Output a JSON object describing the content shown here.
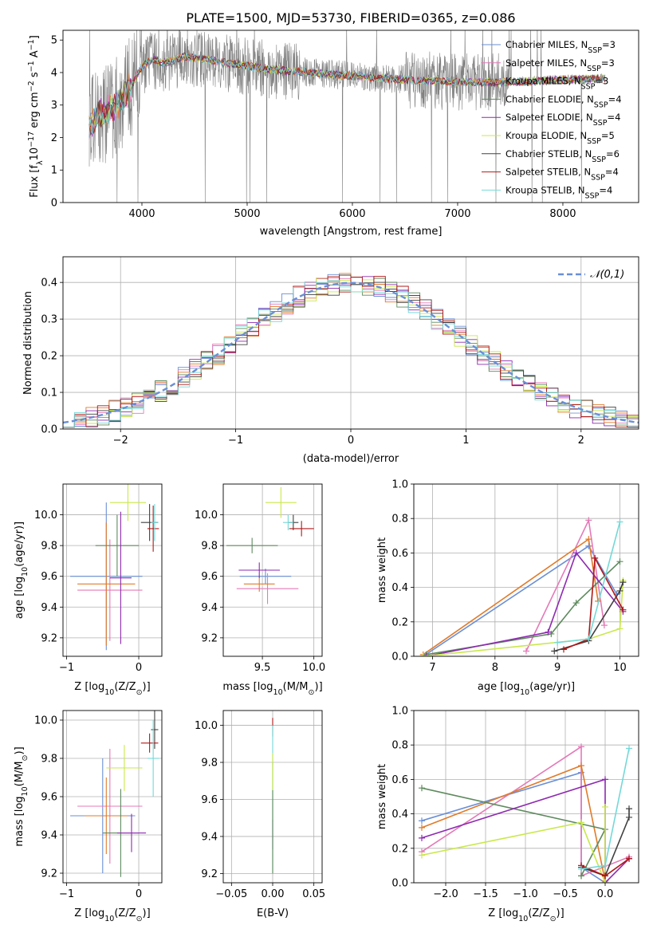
{
  "figure": {
    "title": "PLATE=1500, MJD=53730, FIBERID=0365, z=0.086"
  },
  "colors": {
    "chabrier_miles": "#6a8fd6",
    "salpeter_miles": "#e47ab8",
    "kroupa_miles": "#e07b2a",
    "chabrier_elodie": "#5e8a5e",
    "salpeter_elodie": "#8e2ab0",
    "kroupa_elodie": "#c8e84a",
    "chabrier_stelib": "#404040",
    "salpeter_stelib": "#b01818",
    "kroupa_stelib": "#74d8d8",
    "data": "#808080",
    "grid": "#b0b0b0"
  },
  "chart_data": [
    {
      "id": "spectrum",
      "type": "line",
      "xlabel": "wavelength [Angstrom, rest frame]",
      "ylabel_prefix": "Flux [f",
      "ylabel_mid": "10",
      "ylabel_unit1": " erg cm",
      "ylabel_unit2": " s",
      "ylabel_unit3": " A",
      "ylabel_close": "]",
      "xlim": [
        3250,
        8720
      ],
      "ylim": [
        0,
        5.3
      ],
      "xticks": [
        4000,
        5000,
        6000,
        7000,
        8000
      ],
      "yticks": [
        0,
        1,
        2,
        3,
        4,
        5
      ],
      "legend_loc": "upper right",
      "series": [
        {
          "name": "Chabrier MILES, N",
          "sub": "SSP",
          "suffix": "=3",
          "color": "#6a8fd6"
        },
        {
          "name": "Salpeter MILES, N",
          "sub": "SSP",
          "suffix": "=3",
          "color": "#e47ab8"
        },
        {
          "name": "Kroupa MILES, N",
          "sub": "SSP",
          "suffix": "=3",
          "color": "#e07b2a"
        },
        {
          "name": "Chabrier ELODIE, N",
          "sub": "SSP",
          "suffix": "=4",
          "color": "#5e8a5e"
        },
        {
          "name": "Salpeter ELODIE, N",
          "sub": "SSP",
          "suffix": "=4",
          "color": "#8e2ab0"
        },
        {
          "name": "Kroupa ELODIE, N",
          "sub": "SSP",
          "suffix": "=5",
          "color": "#c8e84a"
        },
        {
          "name": "Chabrier STELIB, N",
          "sub": "SSP",
          "suffix": "=6",
          "color": "#404040"
        },
        {
          "name": "Salpeter STELIB, N",
          "sub": "SSP",
          "suffix": "=4",
          "color": "#b01818"
        },
        {
          "name": "Kroupa STELIB, N",
          "sub": "SSP",
          "suffix": "=4",
          "color": "#74d8d8"
        }
      ],
      "continuum": {
        "x": [
          3500,
          3600,
          3700,
          3800,
          3900,
          4000,
          4100,
          4200,
          4300,
          4400,
          4600,
          4800,
          5000,
          5200,
          5400,
          5600,
          5800,
          6000,
          6200,
          6400,
          6600,
          6800,
          7000,
          7200,
          7400,
          7600,
          7800,
          8000,
          8200,
          8400
        ],
        "y": [
          2.4,
          2.7,
          2.9,
          3.1,
          3.6,
          4.2,
          4.4,
          4.3,
          4.35,
          4.5,
          4.4,
          4.3,
          4.2,
          4.1,
          4.05,
          4.0,
          3.95,
          3.9,
          3.85,
          3.8,
          3.75,
          3.75,
          3.7,
          3.7,
          3.7,
          3.72,
          3.75,
          3.78,
          3.8,
          3.82
        ]
      }
    },
    {
      "id": "residuals",
      "type": "bar",
      "xlabel": "(data-model)/error",
      "ylabel": "Normed distribution",
      "xlim": [
        -2.5,
        2.5
      ],
      "ylim": [
        0,
        0.47
      ],
      "xticks": [
        -2,
        -1,
        0,
        1,
        2
      ],
      "yticks": [
        0.0,
        0.1,
        0.2,
        0.3,
        0.4
      ],
      "legend": "𝒩(0,1)",
      "legend_loc": "upper right",
      "bin_width": 0.1
    },
    {
      "id": "age_vs_Z",
      "type": "scatter",
      "xlabel_pre": "Z [log",
      "xlabel_sub": "10",
      "xlabel_post": "(Z/Z",
      "xlabel_sun": "⊙",
      "xlabel_end": ")]",
      "ylabel_pre": "age  [log",
      "ylabel_sub": "10",
      "ylabel_post": "(age/yr)]",
      "xlim": [
        -1.05,
        0.32
      ],
      "ylim": [
        9.08,
        10.2
      ],
      "xticks": [
        -1,
        0
      ],
      "yticks": [
        9.2,
        9.4,
        9.6,
        9.8,
        10.0
      ],
      "points": [
        {
          "x": -0.45,
          "y": 9.6,
          "xerr": 0.5,
          "yerr": 0.48,
          "color": "#6a8fd6"
        },
        {
          "x": -0.4,
          "y": 9.51,
          "xerr": 0.45,
          "yerr": 0.33,
          "color": "#e47ab8"
        },
        {
          "x": -0.45,
          "y": 9.55,
          "xerr": 0.4,
          "yerr": 0.4,
          "color": "#e07b2a"
        },
        {
          "x": -0.3,
          "y": 9.8,
          "xerr": 0.3,
          "yerr": 0.2,
          "color": "#5e8a5e"
        },
        {
          "x": -0.25,
          "y": 9.59,
          "xerr": 0.15,
          "yerr": 0.43,
          "color": "#8e2ab0"
        },
        {
          "x": -0.15,
          "y": 10.08,
          "xerr": 0.25,
          "yerr": 0.12,
          "color": "#c8e84a"
        },
        {
          "x": 0.15,
          "y": 9.95,
          "xerr": 0.12,
          "yerr": 0.12,
          "color": "#404040"
        },
        {
          "x": 0.2,
          "y": 9.91,
          "xerr": 0.08,
          "yerr": 0.15,
          "color": "#b01818"
        },
        {
          "x": 0.22,
          "y": 9.95,
          "xerr": 0.05,
          "yerr": 0.12,
          "color": "#74d8d8"
        }
      ]
    },
    {
      "id": "age_vs_mass",
      "type": "scatter",
      "xlabel_pre": "mass [log",
      "xlabel_sub": "10",
      "xlabel_post": "(M/M",
      "xlabel_sun": "⊙",
      "xlabel_end": ")]",
      "xlim": [
        9.12,
        10.08
      ],
      "ylim": [
        9.08,
        10.2
      ],
      "xticks": [
        9.5,
        10.0
      ],
      "yticks": [
        9.2,
        9.4,
        9.6,
        9.8,
        10.0
      ],
      "points": [
        {
          "x": 9.53,
          "y": 9.6,
          "xerr": 0.25,
          "yerr": 0.05,
          "color": "#6a8fd6"
        },
        {
          "x": 9.55,
          "y": 9.52,
          "xerr": 0.3,
          "yerr": 0.1,
          "color": "#e47ab8"
        },
        {
          "x": 9.47,
          "y": 9.55,
          "xerr": 0.15,
          "yerr": 0.05,
          "color": "#e07b2a"
        },
        {
          "x": 9.4,
          "y": 9.8,
          "xerr": 0.25,
          "yerr": 0.05,
          "color": "#5e8a5e"
        },
        {
          "x": 9.47,
          "y": 9.64,
          "xerr": 0.2,
          "yerr": 0.05,
          "color": "#8e2ab0"
        },
        {
          "x": 9.68,
          "y": 10.08,
          "xerr": 0.15,
          "yerr": 0.1,
          "color": "#c8e84a"
        },
        {
          "x": 9.8,
          "y": 9.95,
          "xerr": 0.05,
          "yerr": 0.05,
          "color": "#404040"
        },
        {
          "x": 9.88,
          "y": 9.91,
          "xerr": 0.12,
          "yerr": 0.05,
          "color": "#b01818"
        },
        {
          "x": 9.75,
          "y": 9.95,
          "xerr": 0.05,
          "yerr": 0.05,
          "color": "#74d8d8"
        }
      ]
    },
    {
      "id": "weight_vs_age",
      "type": "line",
      "xlabel_pre": "age  [log",
      "xlabel_sub": "10",
      "xlabel_post": "(age/yr)]",
      "ylabel": "mass weight",
      "xlim": [
        6.7,
        10.3
      ],
      "ylim": [
        0,
        1.0
      ],
      "xticks": [
        7,
        8,
        9,
        10
      ],
      "yticks": [
        0.0,
        0.2,
        0.4,
        0.6,
        0.8,
        1.0
      ],
      "series": [
        {
          "color": "#6a8fd6",
          "x": [
            6.85,
            9.5,
            9.95
          ],
          "y": [
            0.0,
            0.64,
            0.36
          ]
        },
        {
          "color": "#e47ab8",
          "x": [
            8.5,
            9.5,
            9.75
          ],
          "y": [
            0.03,
            0.79,
            0.18
          ]
        },
        {
          "color": "#e07b2a",
          "x": [
            6.85,
            9.5,
            9.65
          ],
          "y": [
            0.01,
            0.68,
            0.32
          ]
        },
        {
          "color": "#5e8a5e",
          "x": [
            6.9,
            8.9,
            9.3,
            10.0
          ],
          "y": [
            0.01,
            0.13,
            0.31,
            0.55
          ]
        },
        {
          "color": "#8e2ab0",
          "x": [
            6.9,
            8.85,
            9.3,
            10.05
          ],
          "y": [
            0.0,
            0.14,
            0.6,
            0.26
          ]
        },
        {
          "color": "#c8e84a",
          "x": [
            6.85,
            9.5,
            10.0,
            10.05
          ],
          "y": [
            0.0,
            0.1,
            0.16,
            0.44
          ]
        },
        {
          "color": "#404040",
          "x": [
            8.95,
            9.5,
            10.0,
            10.05
          ],
          "y": [
            0.03,
            0.09,
            0.38,
            0.43
          ]
        },
        {
          "color": "#b01818",
          "x": [
            9.1,
            9.5,
            9.6,
            10.05
          ],
          "y": [
            0.04,
            0.1,
            0.57,
            0.27
          ]
        },
        {
          "color": "#74d8d8",
          "x": [
            9.0,
            9.5,
            10.0
          ],
          "y": [
            0.08,
            0.1,
            0.78
          ]
        }
      ]
    },
    {
      "id": "mass_vs_Z",
      "type": "scatter",
      "xlabel_pre": "Z [log",
      "xlabel_sub": "10",
      "xlabel_post": "(Z/Z",
      "xlabel_sun": "⊙",
      "xlabel_end": ")]",
      "ylabel_pre": "mass [log",
      "ylabel_sub": "10",
      "ylabel_post": "(M/M",
      "ylabel_sun": "⊙",
      "ylabel_end": ")]",
      "xlim": [
        -1.05,
        0.32
      ],
      "ylim": [
        9.15,
        10.05
      ],
      "xticks": [
        -1,
        0
      ],
      "yticks": [
        9.2,
        9.4,
        9.6,
        9.8,
        10.0
      ],
      "points": [
        {
          "x": -0.5,
          "y": 9.5,
          "xerr": 0.45,
          "yerr": 0.3,
          "color": "#6a8fd6"
        },
        {
          "x": -0.4,
          "y": 9.55,
          "xerr": 0.45,
          "yerr": 0.3,
          "color": "#e47ab8"
        },
        {
          "x": -0.45,
          "y": 9.5,
          "xerr": 0.3,
          "yerr": 0.2,
          "color": "#e07b2a"
        },
        {
          "x": -0.25,
          "y": 9.41,
          "xerr": 0.25,
          "yerr": 0.23,
          "color": "#5e8a5e"
        },
        {
          "x": -0.1,
          "y": 9.41,
          "xerr": 0.2,
          "yerr": 0.1,
          "color": "#8e2ab0"
        },
        {
          "x": -0.2,
          "y": 9.75,
          "xerr": 0.25,
          "yerr": 0.12,
          "color": "#c8e84a"
        },
        {
          "x": 0.22,
          "y": 9.95,
          "xerr": 0.05,
          "yerr": 0.1,
          "color": "#404040"
        },
        {
          "x": 0.15,
          "y": 9.88,
          "xerr": 0.12,
          "yerr": 0.05,
          "color": "#b01818"
        },
        {
          "x": 0.2,
          "y": 9.8,
          "xerr": 0.08,
          "yerr": 0.2,
          "color": "#74d8d8"
        }
      ]
    },
    {
      "id": "mass_vs_EBV",
      "type": "scatter",
      "xlabel": "E(B-V)",
      "xlim": [
        -0.06,
        0.06
      ],
      "ylim": [
        9.15,
        10.08
      ],
      "xticks": [
        -0.05,
        0.0,
        0.05
      ],
      "xtick_labels": [
        "−0.05",
        "0.00",
        "0.05"
      ],
      "yticks": [
        9.2,
        9.4,
        9.6,
        9.8,
        10.0
      ],
      "points": [
        {
          "x": 0.0,
          "y": 9.99,
          "yerr": 0.05,
          "color": "#b01818"
        },
        {
          "x": 0.0,
          "y": 9.41,
          "yerr": 0.08,
          "color": "#8e2ab0"
        },
        {
          "x": 0.0,
          "y": 9.6,
          "yerr": 0.4,
          "color": "#74d8d8"
        },
        {
          "x": 0.0,
          "y": 9.5,
          "yerr": 0.3,
          "color": "#5e8a5e"
        },
        {
          "x": 0.0,
          "y": 9.75,
          "yerr": 0.1,
          "color": "#c8e84a"
        }
      ]
    },
    {
      "id": "weight_vs_Z",
      "type": "line",
      "xlabel_pre": "Z [log",
      "xlabel_sub": "10",
      "xlabel_post": "(Z/Z",
      "xlabel_sun": "⊙",
      "xlabel_end": ")]",
      "ylabel": "mass weight",
      "xlim": [
        -2.4,
        0.42
      ],
      "ylim": [
        0,
        1.0
      ],
      "xticks": [
        -2.0,
        -1.5,
        -1.0,
        -0.5,
        0.0
      ],
      "xtick_labels": [
        "−2.0",
        "−1.5",
        "−1.0",
        "−0.5",
        "0.0"
      ],
      "yticks": [
        0.0,
        0.2,
        0.4,
        0.6,
        0.8,
        1.0
      ],
      "series": [
        {
          "color": "#6a8fd6",
          "x": [
            -2.3,
            -0.3,
            -0.3,
            0.0
          ],
          "y": [
            0.36,
            0.64,
            0.09,
            0.0
          ]
        },
        {
          "color": "#e47ab8",
          "x": [
            -2.3,
            -0.3,
            -0.3,
            0.3
          ],
          "y": [
            0.18,
            0.79,
            0.04,
            0.15
          ]
        },
        {
          "color": "#e07b2a",
          "x": [
            -2.3,
            -0.3,
            0.0
          ],
          "y": [
            0.32,
            0.68,
            0.01
          ]
        },
        {
          "color": "#5e8a5e",
          "x": [
            -2.3,
            0.0,
            -0.3
          ],
          "y": [
            0.55,
            0.31,
            0.04
          ]
        },
        {
          "color": "#8e2ab0",
          "x": [
            -2.3,
            0.0,
            0.0,
            0.3
          ],
          "y": [
            0.26,
            0.6,
            0.0,
            0.14
          ]
        },
        {
          "color": "#c8e84a",
          "x": [
            -2.3,
            -0.3,
            0.0,
            0.0
          ],
          "y": [
            0.16,
            0.35,
            0.0,
            0.44
          ]
        },
        {
          "color": "#404040",
          "x": [
            -0.3,
            0.0,
            0.3,
            0.3
          ],
          "y": [
            0.09,
            0.04,
            0.38,
            0.43
          ]
        },
        {
          "color": "#b01818",
          "x": [
            -0.3,
            0.0,
            0.3
          ],
          "y": [
            0.1,
            0.04,
            0.14
          ]
        },
        {
          "color": "#74d8d8",
          "x": [
            -0.3,
            0.0,
            0.3
          ],
          "y": [
            0.08,
            0.1,
            0.78
          ]
        }
      ]
    }
  ]
}
